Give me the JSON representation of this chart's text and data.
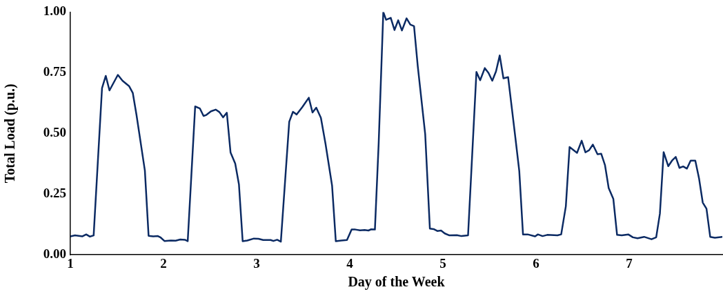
{
  "chart_data": {
    "type": "line",
    "xlabel": "Day of the Week",
    "ylabel": "Total Load (p.u.)",
    "xlim": [
      1,
      8
    ],
    "xticks": [
      1,
      2,
      3,
      4,
      5,
      6,
      7
    ],
    "ylim": [
      0,
      1
    ],
    "yticks": [
      {
        "value": 0,
        "label": "0.00"
      },
      {
        "value": 0.25,
        "label": "0.25"
      },
      {
        "value": 0.5,
        "label": "0.50"
      },
      {
        "value": 0.75,
        "label": "0.75"
      },
      {
        "value": 1,
        "label": "1.00"
      }
    ],
    "grid": false,
    "legend": false,
    "marker": "none",
    "line_style": "solid",
    "x": [
      1.0,
      1.05,
      1.13,
      1.17,
      1.21,
      1.25,
      1.34,
      1.38,
      1.42,
      1.51,
      1.56,
      1.63,
      1.67,
      1.71,
      1.8,
      1.84,
      1.89,
      1.94,
      1.97,
      2.01,
      2.08,
      2.13,
      2.18,
      2.23,
      2.26,
      2.34,
      2.39,
      2.43,
      2.46,
      2.51,
      2.56,
      2.6,
      2.64,
      2.68,
      2.72,
      2.77,
      2.81,
      2.85,
      2.9,
      2.97,
      3.02,
      3.07,
      3.15,
      3.18,
      3.22,
      3.26,
      3.35,
      3.39,
      3.43,
      3.49,
      3.56,
      3.6,
      3.64,
      3.69,
      3.74,
      3.81,
      3.85,
      3.91,
      3.97,
      4.02,
      4.06,
      4.11,
      4.16,
      4.2,
      4.23,
      4.27,
      4.31,
      4.36,
      4.39,
      4.44,
      4.48,
      4.52,
      4.56,
      4.61,
      4.65,
      4.69,
      4.73,
      4.81,
      4.86,
      4.9,
      4.94,
      4.98,
      5.02,
      5.07,
      5.15,
      5.2,
      5.27,
      5.36,
      5.4,
      5.45,
      5.49,
      5.53,
      5.57,
      5.61,
      5.65,
      5.7,
      5.73,
      5.78,
      5.82,
      5.86,
      5.91,
      5.99,
      6.02,
      6.07,
      6.12,
      6.23,
      6.27,
      6.32,
      6.36,
      6.44,
      6.49,
      6.53,
      6.57,
      6.61,
      6.66,
      6.7,
      6.74,
      6.78,
      6.83,
      6.87,
      6.92,
      6.99,
      7.04,
      7.09,
      7.16,
      7.24,
      7.29,
      7.33,
      7.37,
      7.42,
      7.46,
      7.5,
      7.54,
      7.58,
      7.62,
      7.66,
      7.71,
      7.75,
      7.79,
      7.83,
      7.87,
      7.92,
      8.0
    ],
    "series": [
      {
        "color": "#0b2a63",
        "values": [
          0.076,
          0.08,
          0.076,
          0.084,
          0.075,
          0.08,
          0.687,
          0.737,
          0.677,
          0.741,
          0.717,
          0.695,
          0.667,
          0.576,
          0.347,
          0.078,
          0.076,
          0.077,
          0.071,
          0.057,
          0.059,
          0.058,
          0.063,
          0.062,
          0.056,
          0.611,
          0.603,
          0.572,
          0.576,
          0.591,
          0.598,
          0.588,
          0.566,
          0.585,
          0.421,
          0.376,
          0.29,
          0.056,
          0.059,
          0.067,
          0.066,
          0.061,
          0.061,
          0.057,
          0.062,
          0.054,
          0.548,
          0.589,
          0.578,
          0.608,
          0.647,
          0.586,
          0.606,
          0.564,
          0.456,
          0.285,
          0.056,
          0.059,
          0.061,
          0.104,
          0.104,
          0.101,
          0.102,
          0.1,
          0.105,
          0.104,
          0.456,
          1.0,
          0.968,
          0.976,
          0.926,
          0.966,
          0.924,
          0.974,
          0.948,
          0.942,
          0.777,
          0.496,
          0.108,
          0.106,
          0.098,
          0.1,
          0.088,
          0.08,
          0.081,
          0.077,
          0.08,
          0.753,
          0.719,
          0.769,
          0.749,
          0.717,
          0.755,
          0.821,
          0.727,
          0.732,
          0.636,
          0.476,
          0.345,
          0.084,
          0.084,
          0.076,
          0.084,
          0.077,
          0.082,
          0.08,
          0.084,
          0.2,
          0.444,
          0.42,
          0.47,
          0.422,
          0.431,
          0.454,
          0.414,
          0.416,
          0.37,
          0.275,
          0.23,
          0.082,
          0.08,
          0.084,
          0.072,
          0.068,
          0.074,
          0.064,
          0.072,
          0.17,
          0.423,
          0.365,
          0.388,
          0.403,
          0.358,
          0.364,
          0.355,
          0.388,
          0.388,
          0.315,
          0.215,
          0.19,
          0.074,
          0.07,
          0.074
        ]
      }
    ]
  }
}
